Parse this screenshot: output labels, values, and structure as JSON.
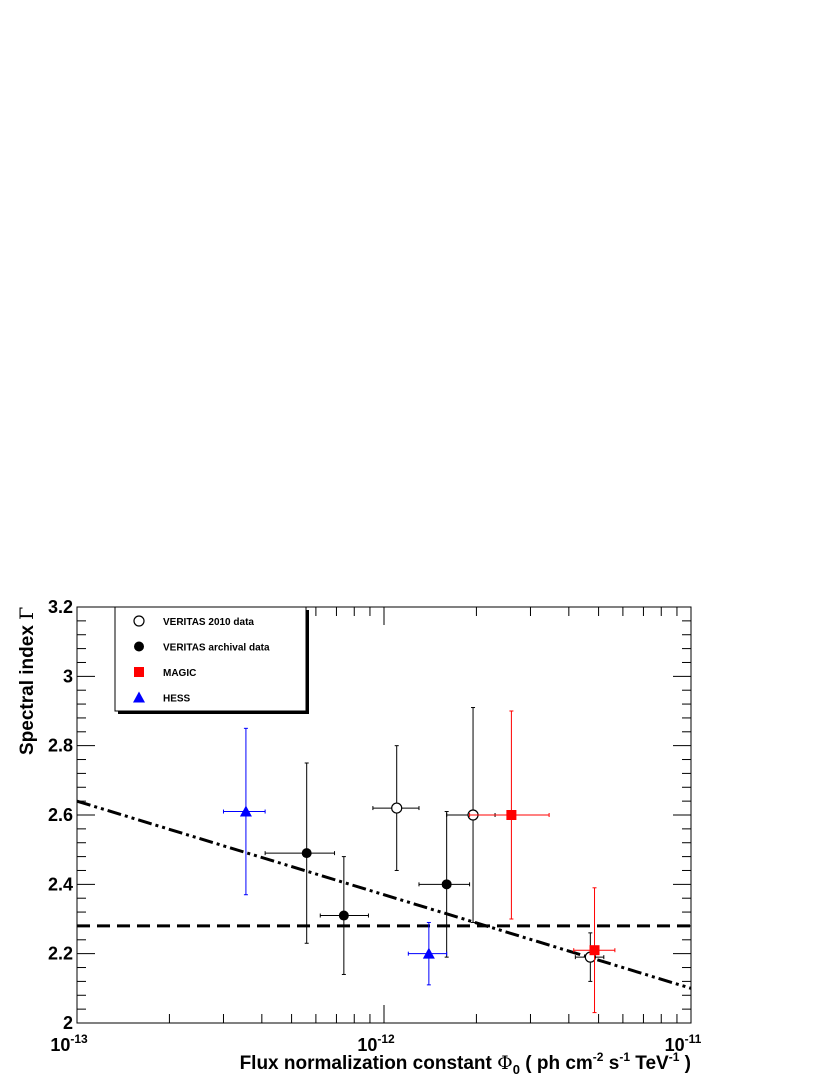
{
  "chart_data": {
    "type": "scatter",
    "xlabel": {
      "prefix": "Flux normalization constant ",
      "phi": "Φ",
      "phi_sub": "0",
      "units_prefix": " ( ph cm",
      "cm_exp": "-2",
      "s": " s",
      "s_exp": "-1",
      "tev": " TeV",
      "tev_exp": "-1",
      "close": " )"
    },
    "ylabel": {
      "prefix": "Spectral index ",
      "gamma": "Γ"
    },
    "x_scale": "log",
    "xlim": [
      1e-13,
      1e-11
    ],
    "ylim": [
      2.0,
      3.2
    ],
    "x_tick_labels": [
      {
        "base": "10",
        "exp": "-13"
      },
      {
        "base": "10",
        "exp": "-12"
      },
      {
        "base": "10",
        "exp": "-11"
      }
    ],
    "y_tick_labels": [
      "2",
      "2.2",
      "2.4",
      "2.6",
      "2.8",
      "3",
      "3.2"
    ],
    "grid": false,
    "legend_placement": "top-left",
    "series": [
      {
        "name": "VERITAS 2010 data",
        "marker": "open-circle",
        "color": "#000000",
        "points": [
          {
            "x": 1.1e-12,
            "y": 2.62,
            "xerr": [
              9.2e-13,
              1.3e-12
            ],
            "yerr": [
              2.44,
              2.8
            ]
          },
          {
            "x": 1.95e-12,
            "y": 2.6,
            "xerr": [
              1.6e-12,
              2.3e-12
            ],
            "yerr": [
              2.29,
              2.91
            ]
          },
          {
            "x": 4.7e-12,
            "y": 2.19,
            "xerr": [
              4.2e-12,
              5.2e-12
            ],
            "yerr": [
              2.12,
              2.26
            ]
          }
        ]
      },
      {
        "name": "VERITAS archival data",
        "marker": "filled-circle",
        "color": "#000000",
        "points": [
          {
            "x": 5.6e-13,
            "y": 2.49,
            "xerr": [
              4.1e-13,
              6.9e-13
            ],
            "yerr": [
              2.23,
              2.75
            ]
          },
          {
            "x": 7.4e-13,
            "y": 2.31,
            "xerr": [
              6.2e-13,
              8.9e-13
            ],
            "yerr": [
              2.14,
              2.48
            ]
          },
          {
            "x": 1.6e-12,
            "y": 2.4,
            "xerr": [
              1.3e-12,
              1.9e-12
            ],
            "yerr": [
              2.19,
              2.61
            ]
          }
        ]
      },
      {
        "name": "MAGIC",
        "marker": "filled-square",
        "color": "#ff0000",
        "points": [
          {
            "x": 2.6e-12,
            "y": 2.6,
            "xerr": [
              1.9e-12,
              3.45e-12
            ],
            "yerr": [
              2.3,
              2.9
            ]
          },
          {
            "x": 4.85e-12,
            "y": 2.21,
            "xerr": [
              4.15e-12,
              5.65e-12
            ],
            "yerr": [
              2.03,
              2.39
            ]
          }
        ]
      },
      {
        "name": "HESS",
        "marker": "filled-triangle",
        "color": "#0000ff",
        "points": [
          {
            "x": 3.55e-13,
            "y": 2.61,
            "xerr": [
              3e-13,
              4.1e-13
            ],
            "yerr": [
              2.37,
              2.85
            ]
          },
          {
            "x": 1.4e-12,
            "y": 2.2,
            "xerr": [
              1.2e-12,
              1.6e-12
            ],
            "yerr": [
              2.11,
              2.29
            ]
          }
        ]
      }
    ],
    "reference_lines": [
      {
        "style": "dashed",
        "color": "#000000",
        "type": "constant",
        "y": 2.28
      },
      {
        "style": "dash-dot-dot",
        "color": "#000000",
        "type": "log-linear",
        "x_start": 1e-13,
        "y_start": 2.64,
        "x_end": 1e-11,
        "y_end": 2.1
      }
    ]
  }
}
